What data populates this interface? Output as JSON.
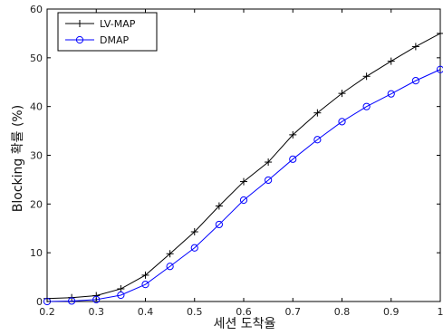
{
  "chart_data": {
    "type": "line",
    "xlabel": "세션 도착율",
    "ylabel": "Blocking 확률 (%)",
    "xlim": [
      0.2,
      1.0
    ],
    "ylim": [
      0,
      60
    ],
    "xticks": [
      "0.2",
      "0.3",
      "0.4",
      "0.5",
      "0.6",
      "0.7",
      "0.8",
      "0.9",
      "1"
    ],
    "yticks": [
      "0",
      "10",
      "20",
      "30",
      "40",
      "50",
      "60"
    ],
    "grid": false,
    "legend_position": "top-left",
    "x": [
      0.2,
      0.25,
      0.3,
      0.35,
      0.4,
      0.45,
      0.5,
      0.55,
      0.6,
      0.65,
      0.7,
      0.75,
      0.8,
      0.85,
      0.9,
      0.95,
      1.0
    ],
    "series": [
      {
        "name": "LV-MAP",
        "color": "#000000",
        "marker": "plus",
        "values": [
          0.6,
          0.8,
          1.2,
          2.6,
          5.4,
          9.8,
          14.3,
          19.6,
          24.6,
          28.6,
          34.2,
          38.7,
          42.7,
          46.2,
          49.3,
          52.3,
          55.0
        ]
      },
      {
        "name": "DMAP",
        "color": "#0000ff",
        "marker": "circle",
        "values": [
          0.0,
          0.1,
          0.4,
          1.3,
          3.5,
          7.2,
          11.0,
          15.8,
          20.8,
          24.9,
          29.2,
          33.2,
          36.9,
          40.0,
          42.6,
          45.3,
          47.6
        ]
      }
    ]
  }
}
